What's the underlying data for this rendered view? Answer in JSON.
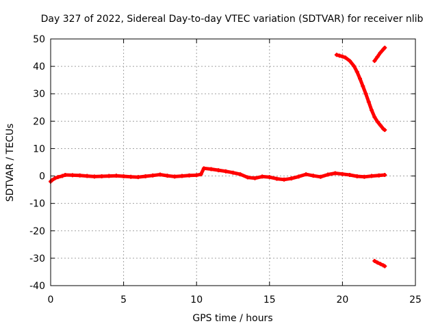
{
  "chart_data": {
    "type": "scatter",
    "title": "Day 327 of 2022, Sidereal Day-to-day VTEC variation (SDTVAR) for receiver nlib",
    "xlabel": "GPS time / hours",
    "ylabel": "SDTVAR / TECUs",
    "xlim": [
      0,
      25
    ],
    "ylim": [
      -40,
      50
    ],
    "xticks": [
      0,
      5,
      10,
      15,
      20,
      25
    ],
    "yticks": [
      -40,
      -30,
      -20,
      -10,
      0,
      10,
      20,
      30,
      40,
      50
    ],
    "grid": true,
    "series_color": "#ff0000",
    "series": [
      {
        "name": "main band",
        "points": [
          [
            0.0,
            -2.0
          ],
          [
            0.1,
            -1.5
          ],
          [
            0.3,
            -0.8
          ],
          [
            0.5,
            -0.4
          ],
          [
            0.8,
            0.0
          ],
          [
            1.0,
            0.4
          ],
          [
            1.5,
            0.3
          ],
          [
            2.0,
            0.2
          ],
          [
            2.5,
            0.0
          ],
          [
            3.0,
            -0.2
          ],
          [
            3.5,
            -0.1
          ],
          [
            4.0,
            0.0
          ],
          [
            4.5,
            0.1
          ],
          [
            5.0,
            -0.1
          ],
          [
            5.5,
            -0.3
          ],
          [
            6.0,
            -0.4
          ],
          [
            6.5,
            -0.1
          ],
          [
            7.0,
            0.2
          ],
          [
            7.5,
            0.5
          ],
          [
            8.0,
            0.1
          ],
          [
            8.5,
            -0.2
          ],
          [
            9.0,
            0.0
          ],
          [
            9.5,
            0.2
          ],
          [
            10.0,
            0.3
          ],
          [
            10.3,
            0.6
          ],
          [
            10.5,
            2.8
          ],
          [
            11.0,
            2.5
          ],
          [
            11.5,
            2.1
          ],
          [
            12.0,
            1.7
          ],
          [
            12.5,
            1.2
          ],
          [
            13.0,
            0.6
          ],
          [
            13.5,
            -0.5
          ],
          [
            14.0,
            -0.8
          ],
          [
            14.5,
            -0.2
          ],
          [
            15.0,
            -0.4
          ],
          [
            15.5,
            -1.0
          ],
          [
            16.0,
            -1.3
          ],
          [
            16.5,
            -0.9
          ],
          [
            17.0,
            -0.2
          ],
          [
            17.5,
            0.6
          ],
          [
            18.0,
            0.1
          ],
          [
            18.5,
            -0.3
          ],
          [
            19.0,
            0.5
          ],
          [
            19.5,
            1.0
          ],
          [
            20.0,
            0.7
          ],
          [
            20.5,
            0.4
          ],
          [
            21.0,
            -0.1
          ],
          [
            21.5,
            -0.3
          ],
          [
            22.0,
            0.0
          ],
          [
            22.5,
            0.2
          ],
          [
            22.9,
            0.4
          ]
        ]
      },
      {
        "name": "descending arc",
        "points": [
          [
            19.6,
            44.2
          ],
          [
            19.8,
            43.9
          ],
          [
            20.0,
            43.6
          ],
          [
            20.2,
            43.2
          ],
          [
            20.5,
            42.0
          ],
          [
            20.8,
            40.0
          ],
          [
            21.0,
            38.0
          ],
          [
            21.2,
            35.5
          ],
          [
            21.4,
            32.8
          ],
          [
            21.6,
            30.0
          ],
          [
            21.8,
            27.0
          ],
          [
            22.0,
            24.0
          ],
          [
            22.2,
            21.5
          ],
          [
            22.4,
            19.8
          ],
          [
            22.6,
            18.5
          ],
          [
            22.8,
            17.2
          ],
          [
            22.9,
            16.8
          ]
        ]
      },
      {
        "name": "upper short arc",
        "points": [
          [
            22.2,
            42.0
          ],
          [
            22.4,
            43.5
          ],
          [
            22.6,
            45.0
          ],
          [
            22.8,
            46.2
          ],
          [
            22.9,
            46.8
          ]
        ]
      },
      {
        "name": "lower short arc",
        "points": [
          [
            22.2,
            -31.0
          ],
          [
            22.4,
            -31.6
          ],
          [
            22.6,
            -32.1
          ],
          [
            22.8,
            -32.6
          ],
          [
            22.9,
            -32.9
          ]
        ]
      }
    ]
  }
}
